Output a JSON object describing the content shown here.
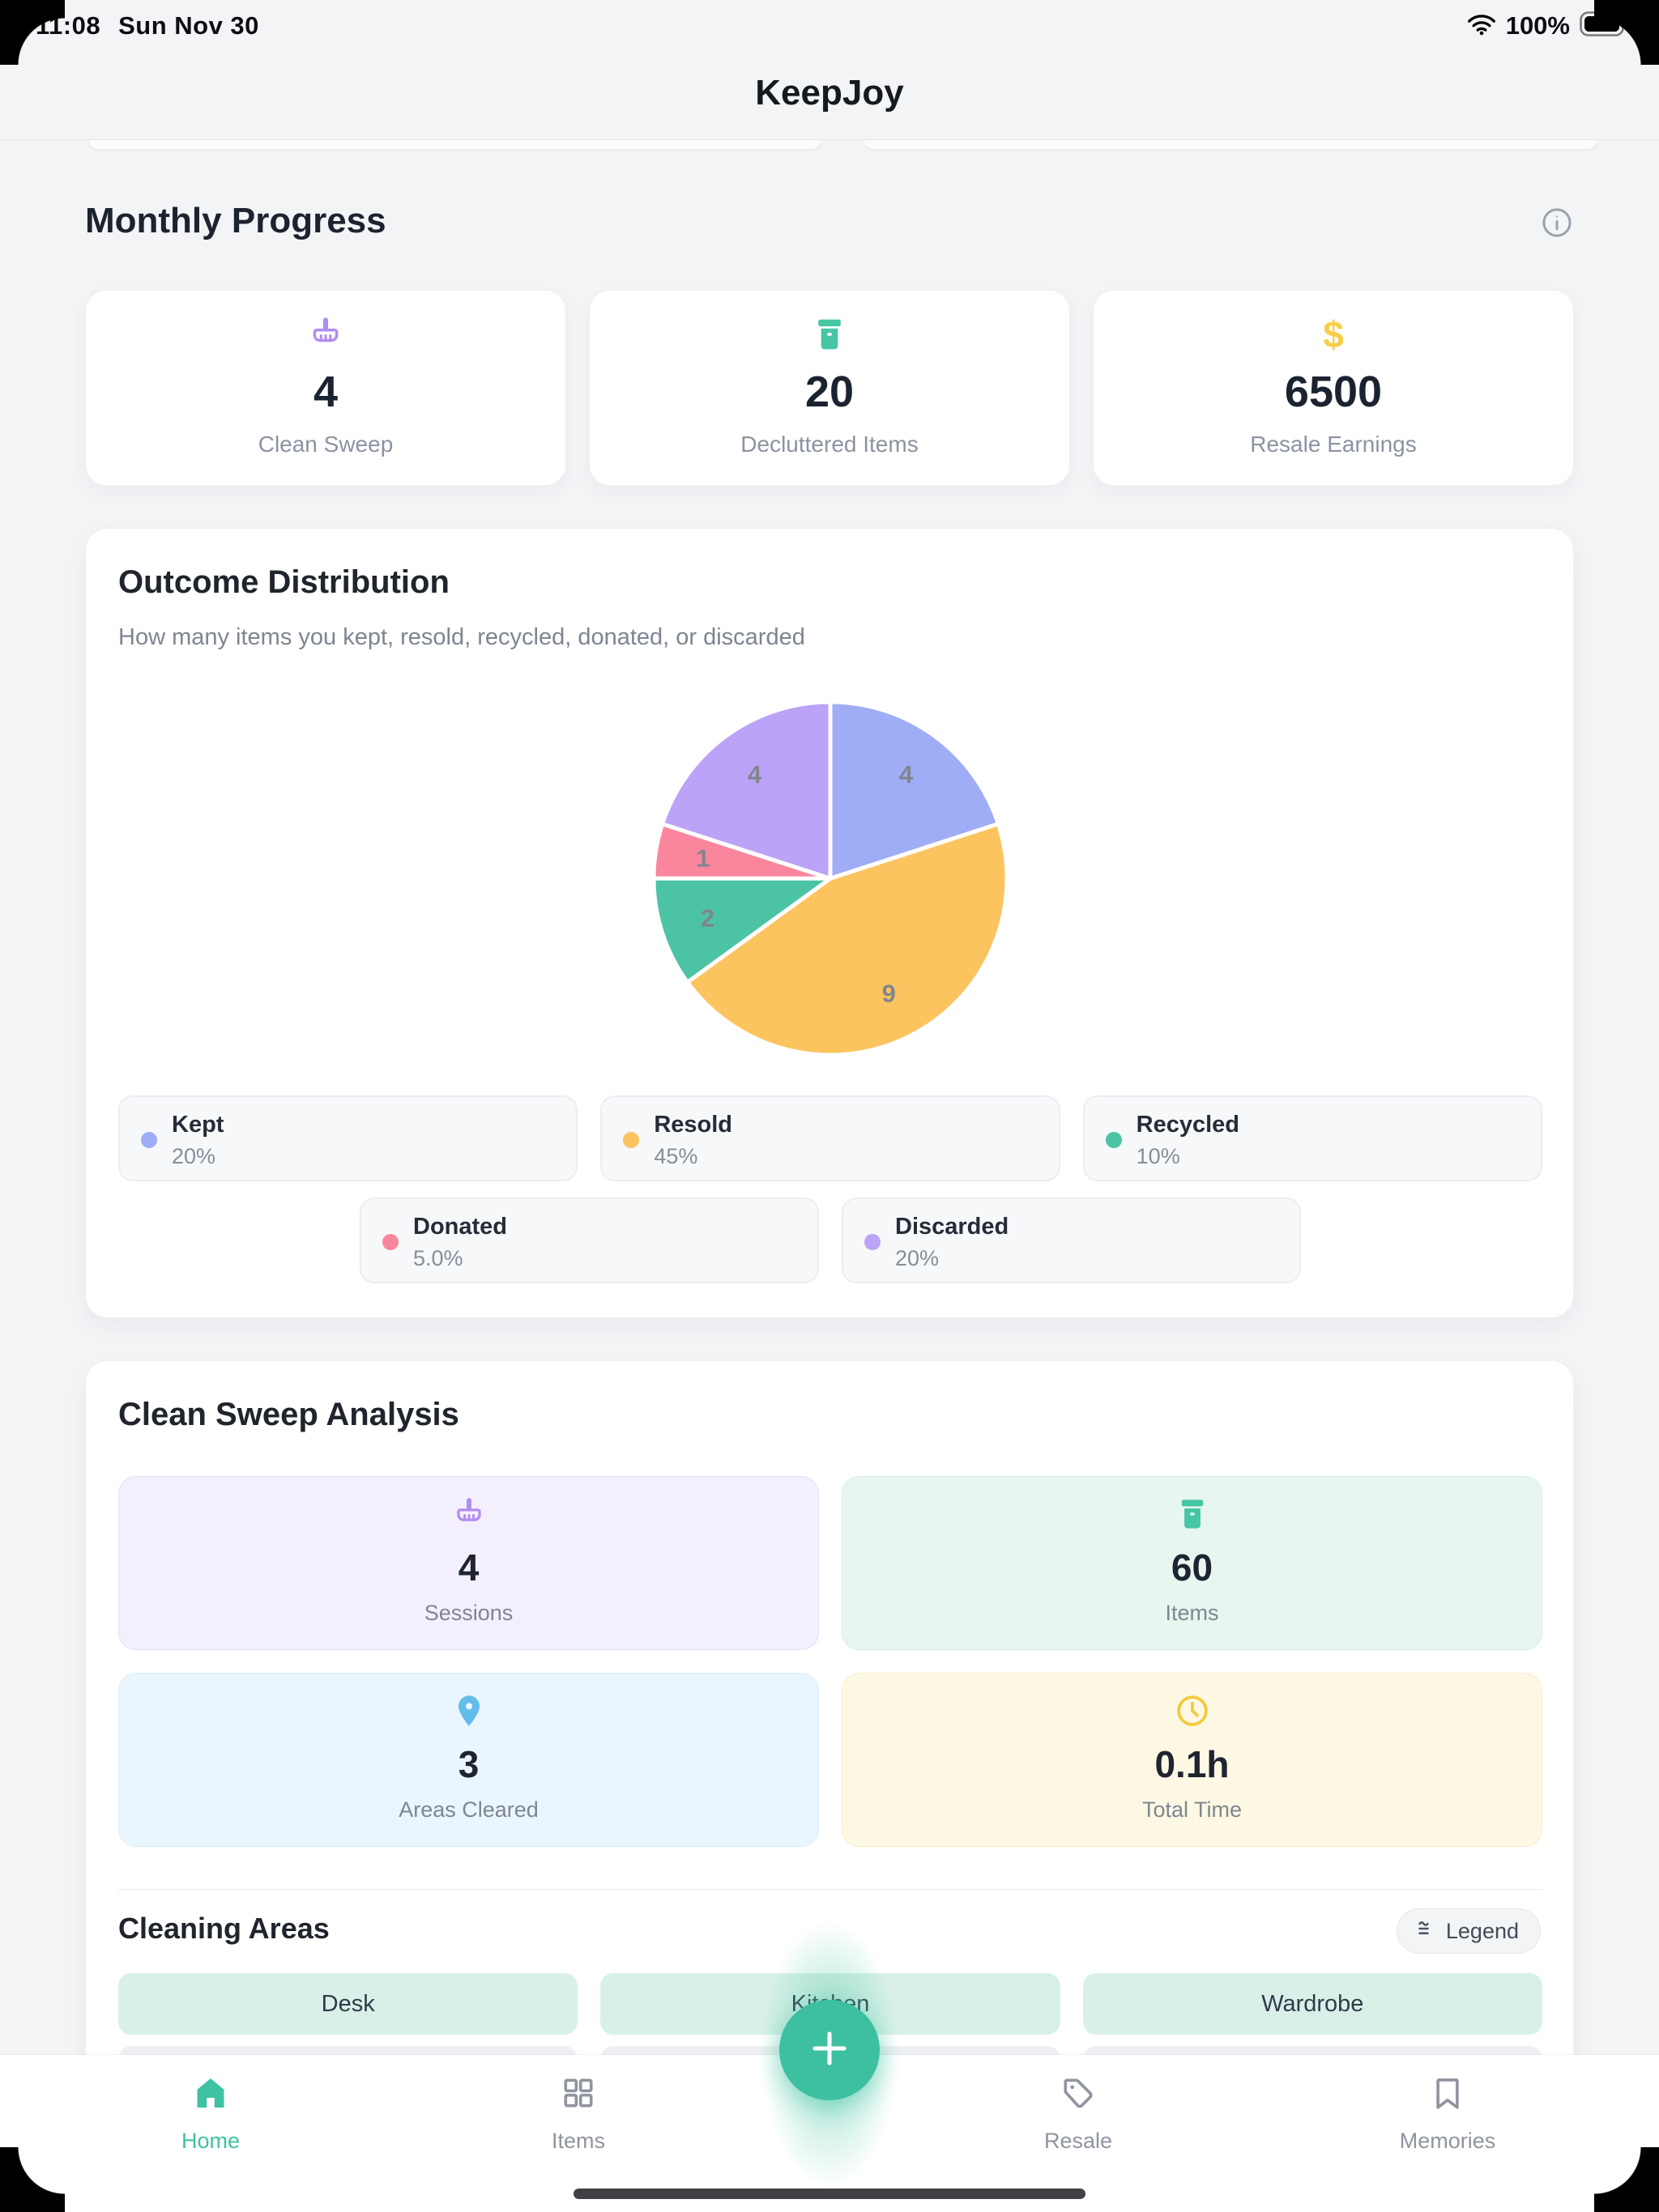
{
  "status_bar": {
    "time": "11:08",
    "date": "Sun Nov 30",
    "battery_percent": "100%"
  },
  "header": {
    "title": "KeepJoy"
  },
  "monthly_progress": {
    "title": "Monthly Progress",
    "stats": [
      {
        "icon": "brush-icon",
        "icon_color": "#b18df2",
        "value": "4",
        "label": "Clean Sweep"
      },
      {
        "icon": "trash-icon",
        "icon_color": "#47c6a4",
        "value": "20",
        "label": "Decluttered Items"
      },
      {
        "icon": "dollar-icon",
        "icon_color": "#f7ce46",
        "value": "6500",
        "label": "Resale Earnings"
      }
    ]
  },
  "outcome": {
    "title": "Outcome Distribution",
    "subtitle": "How many items you kept, resold, recycled, donated, or discarded",
    "legend": [
      {
        "name": "Kept",
        "percent": "20%",
        "color": "#9fadf7"
      },
      {
        "name": "Resold",
        "percent": "45%",
        "color": "#fcc45e"
      },
      {
        "name": "Recycled",
        "percent": "10%",
        "color": "#4cc4a4"
      },
      {
        "name": "Donated",
        "percent": "5.0%",
        "color": "#fa869d"
      },
      {
        "name": "Discarded",
        "percent": "20%",
        "color": "#bba3f7"
      }
    ]
  },
  "chart_data": {
    "type": "pie",
    "title": "Outcome Distribution",
    "categories": [
      "Kept",
      "Resold",
      "Recycled",
      "Donated",
      "Discarded"
    ],
    "values": [
      4,
      9,
      2,
      1,
      4
    ],
    "percent_labels": [
      "20%",
      "45%",
      "10%",
      "5.0%",
      "20%"
    ],
    "colors": [
      "#9fadf7",
      "#fcc45e",
      "#4cc4a4",
      "#fa869d",
      "#bba3f7"
    ],
    "slice_label_color": "#81858e",
    "start_angle_deg": 0,
    "direction": "clockwise",
    "legend_position": "bottom"
  },
  "analysis": {
    "title": "Clean Sweep Analysis",
    "stats": [
      {
        "icon": "brush-icon",
        "value": "4",
        "label": "Sessions",
        "bg": "#f4effc",
        "icon_color": "#b18df2"
      },
      {
        "icon": "trash-icon",
        "value": "60",
        "label": "Items",
        "bg": "#e8f6f0",
        "icon_color": "#47c6a4"
      },
      {
        "icon": "pin-icon",
        "value": "3",
        "label": "Areas Cleared",
        "bg": "#eaf6fd",
        "icon_color": "#63bdec"
      },
      {
        "icon": "clock-icon",
        "value": "0.1h",
        "label": "Total Time",
        "bg": "#fdf8e3",
        "icon_color": "#f2ca3d"
      }
    ]
  },
  "cleaning_areas": {
    "title": "Cleaning Areas",
    "legend_button": "Legend",
    "areas": [
      "Desk",
      "Kitchen",
      "Wardrobe"
    ],
    "chip_color": "#d8f0e8"
  },
  "fab": {
    "icon": "plus-icon",
    "color": "#3cc0a0"
  },
  "tab_bar": {
    "active_color": "#3ec2a1",
    "inactive_color": "#8f949f",
    "tabs": [
      {
        "label": "Home",
        "icon": "home-icon",
        "active": true
      },
      {
        "label": "Items",
        "icon": "grid-icon",
        "active": false
      },
      {
        "label": "Resale",
        "icon": "tag-icon",
        "active": false
      },
      {
        "label": "Memories",
        "icon": "bookmark-icon",
        "active": false
      }
    ]
  }
}
